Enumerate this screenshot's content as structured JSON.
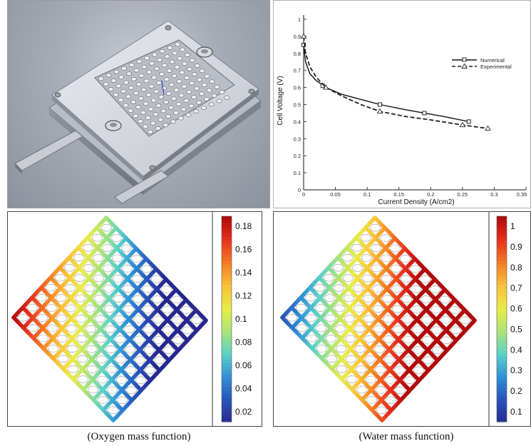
{
  "chart_data": {
    "type": "line",
    "xlabel": "Current Density (A/cm2)",
    "ylabel": "Cell Voltage (V)",
    "xlim": [
      0,
      0.35
    ],
    "ylim": [
      0,
      1
    ],
    "x_ticks": [
      "0",
      "0.05",
      "0.1",
      "0.15",
      "0.2",
      "0.25",
      "0.3",
      "0.35"
    ],
    "y_ticks": [
      "0",
      "0.1",
      "0.2",
      "0.3",
      "0.4",
      "0.5",
      "0.6",
      "0.7",
      "0.8",
      "0.9",
      "1"
    ],
    "legend_position": "top-right",
    "series": [
      {
        "name": "Numerical",
        "style": "solid",
        "marker": "square",
        "color": "#111111",
        "x": [
          0.0,
          0.003,
          0.01,
          0.02,
          0.035,
          0.06,
          0.09,
          0.12,
          0.16,
          0.19,
          0.22,
          0.26
        ],
        "y": [
          0.85,
          0.75,
          0.68,
          0.64,
          0.6,
          0.56,
          0.53,
          0.5,
          0.47,
          0.45,
          0.43,
          0.4
        ],
        "marker_x": [
          0.0,
          0.03,
          0.12,
          0.19,
          0.26
        ],
        "marker_y": [
          0.85,
          0.61,
          0.5,
          0.45,
          0.4
        ]
      },
      {
        "name": "Experimental",
        "style": "dashed",
        "marker": "triangle",
        "color": "#222222",
        "x": [
          0.0,
          0.003,
          0.01,
          0.02,
          0.035,
          0.06,
          0.09,
          0.12,
          0.16,
          0.2,
          0.25,
          0.29
        ],
        "y": [
          0.9,
          0.8,
          0.72,
          0.66,
          0.6,
          0.55,
          0.5,
          0.46,
          0.43,
          0.41,
          0.38,
          0.36
        ],
        "marker_x": [
          0.0,
          0.035,
          0.12,
          0.25,
          0.29
        ],
        "marker_y": [
          0.9,
          0.6,
          0.46,
          0.38,
          0.36
        ]
      }
    ]
  },
  "oxygen_panel": {
    "colorbar_ticks": [
      "0.18",
      "0.16",
      "0.14",
      "0.12",
      "0.1",
      "0.08",
      "0.06",
      "0.04",
      "0.02"
    ],
    "colormap": [
      "#b10a0a",
      "#e8321e",
      "#f47e24",
      "#f9c23a",
      "#e9ec49",
      "#a9e37a",
      "#5bd0c8",
      "#2f8ed6",
      "#2952b8",
      "#26288f"
    ],
    "caption": "(Oxygen mass function)"
  },
  "water_panel": {
    "colorbar_ticks": [
      "1",
      "0.9",
      "0.8",
      "0.7",
      "0.6",
      "0.5",
      "0.4",
      "0.3",
      "0.2",
      "0.1"
    ],
    "colormap": [
      "#b10a0a",
      "#e8321e",
      "#f47e24",
      "#f9c23a",
      "#e9ec49",
      "#a9e37a",
      "#5bd0c8",
      "#2f8ed6",
      "#2952b8",
      "#26288f"
    ],
    "caption": "(Water mass function)"
  }
}
